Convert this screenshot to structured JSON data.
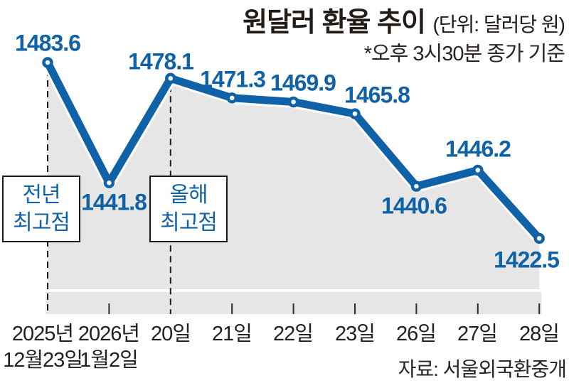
{
  "header": {
    "title": "원달러 환율 추이",
    "unit": "(단위: 달러당 원)",
    "note": "*오후 3시30분 종가 기준"
  },
  "footer": {
    "source": "자료: 서울외국환중개"
  },
  "annotations": {
    "prev_year_high": {
      "line1": "전년",
      "line2": "최고점"
    },
    "this_year_high": {
      "line1": "올해",
      "line2": "최고점"
    }
  },
  "colors": {
    "line_blue": "#1062a8",
    "area_gray": "#e6e6e6",
    "axis_dark": "#2b2b2b",
    "text_black": "#231f1e"
  },
  "chart_data": {
    "type": "line",
    "title": "원달러 환율 추이",
    "unit": "달러당 원",
    "basis_note": "오후 3시30분 종가 기준",
    "categories": [
      "2025년 12월23일",
      "2026년 1월2일",
      "20일",
      "21일",
      "22일",
      "23일",
      "26일",
      "27일",
      "28일"
    ],
    "values": [
      1483.6,
      1441.8,
      1478.1,
      1471.3,
      1469.9,
      1465.8,
      1440.6,
      1446.2,
      1422.5
    ],
    "point_labels": [
      "1483.6",
      "1441.8",
      "1478.1",
      "1471.3",
      "1469.9",
      "1465.8",
      "1440.6",
      "1446.2",
      "1422.5"
    ],
    "x_labels": [
      [
        "2025년",
        "12월23일"
      ],
      [
        "2026년",
        "1월2일"
      ],
      [
        "20일"
      ],
      [
        "21일"
      ],
      [
        "22일"
      ],
      [
        "23일"
      ],
      [
        "26일"
      ],
      [
        "27일"
      ],
      [
        "28일"
      ]
    ],
    "ylim": [
      1415,
      1492
    ],
    "grid": false,
    "legend": false,
    "area_fill": true,
    "highlighted_points": {
      "prev_year_high_index": 0,
      "this_year_high_index": 2
    }
  }
}
